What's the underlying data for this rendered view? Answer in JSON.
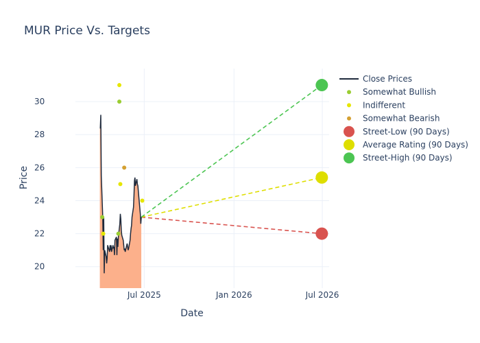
{
  "chart_data": {
    "type": "line",
    "title": "MUR Price Vs. Targets",
    "xlabel": "Date",
    "ylabel": "Price",
    "xlim": [
      "2025-02-10",
      "2026-07-15"
    ],
    "ylim": [
      18.7,
      32.0
    ],
    "x_ticks": [
      {
        "date": "2025-07-01",
        "label": "Jul 2025"
      },
      {
        "date": "2026-01-01",
        "label": "Jan 2026"
      },
      {
        "date": "2026-07-01",
        "label": "Jul 2026"
      }
    ],
    "y_ticks": [
      20,
      22,
      24,
      26,
      28,
      30
    ],
    "grid": true,
    "legend_position": "top-right",
    "colors": {
      "close": "#1f2a3c",
      "fill": "#fcb08b",
      "somewhat_bullish": "#9acd32",
      "indifferent": "#e6e600",
      "somewhat_bearish": "#d4a032",
      "street_low": "#d9534f",
      "average": "#dede00",
      "street_high": "#4cc552"
    },
    "close_prices": [
      [
        "2025-04-01",
        28.4
      ],
      [
        "2025-04-02",
        28.4
      ],
      [
        "2025-04-03",
        29.2
      ],
      [
        "2025-04-04",
        25.5
      ],
      [
        "2025-04-07",
        23.0
      ],
      [
        "2025-04-08",
        21.0
      ],
      [
        "2025-04-09",
        23.0
      ],
      [
        "2025-04-10",
        19.6
      ],
      [
        "2025-04-11",
        21.0
      ],
      [
        "2025-04-14",
        20.6
      ],
      [
        "2025-04-15",
        20.2
      ],
      [
        "2025-04-16",
        20.5
      ],
      [
        "2025-04-17",
        21.3
      ],
      [
        "2025-04-21",
        20.9
      ],
      [
        "2025-04-22",
        21.3
      ],
      [
        "2025-04-23",
        21.0
      ],
      [
        "2025-04-24",
        21.3
      ],
      [
        "2025-04-25",
        20.9
      ],
      [
        "2025-04-28",
        21.3
      ],
      [
        "2025-04-29",
        21.1
      ],
      [
        "2025-04-30",
        21.2
      ],
      [
        "2025-05-01",
        20.7
      ],
      [
        "2025-05-02",
        21.6
      ],
      [
        "2025-05-05",
        21.8
      ],
      [
        "2025-05-06",
        20.7
      ],
      [
        "2025-05-07",
        21.7
      ],
      [
        "2025-05-08",
        21.2
      ],
      [
        "2025-05-09",
        21.8
      ],
      [
        "2025-05-12",
        22.6
      ],
      [
        "2025-05-13",
        23.2
      ],
      [
        "2025-05-14",
        22.9
      ],
      [
        "2025-05-15",
        22.2
      ],
      [
        "2025-05-16",
        21.9
      ],
      [
        "2025-05-19",
        21.6
      ],
      [
        "2025-05-20",
        21.3
      ],
      [
        "2025-05-21",
        21.0
      ],
      [
        "2025-05-22",
        21.1
      ],
      [
        "2025-05-23",
        20.9
      ],
      [
        "2025-05-27",
        21.4
      ],
      [
        "2025-05-28",
        21.2
      ],
      [
        "2025-05-29",
        21.0
      ],
      [
        "2025-05-30",
        21.1
      ],
      [
        "2025-06-02",
        21.6
      ],
      [
        "2025-06-03",
        22.0
      ],
      [
        "2025-06-04",
        22.3
      ],
      [
        "2025-06-05",
        22.5
      ],
      [
        "2025-06-06",
        23.0
      ],
      [
        "2025-06-09",
        23.6
      ],
      [
        "2025-06-10",
        24.3
      ],
      [
        "2025-06-11",
        25.2
      ],
      [
        "2025-06-12",
        25.4
      ],
      [
        "2025-06-13",
        24.9
      ],
      [
        "2025-06-16",
        25.3
      ],
      [
        "2025-06-17",
        25.0
      ],
      [
        "2025-06-18",
        24.9
      ],
      [
        "2025-06-20",
        24.2
      ],
      [
        "2025-06-23",
        23.2
      ],
      [
        "2025-06-24",
        22.6
      ],
      [
        "2025-06-25",
        23.0
      ]
    ],
    "rating_points": [
      {
        "date": "2025-04-06",
        "price": 23,
        "category": "somewhat_bullish"
      },
      {
        "date": "2025-04-08",
        "price": 22,
        "category": "indifferent"
      },
      {
        "date": "2025-05-09",
        "price": 22,
        "category": "somewhat_bullish"
      },
      {
        "date": "2025-05-11",
        "price": 30,
        "category": "somewhat_bullish"
      },
      {
        "date": "2025-05-11",
        "price": 31,
        "category": "indifferent"
      },
      {
        "date": "2025-05-13",
        "price": 25,
        "category": "indifferent"
      },
      {
        "date": "2025-05-21",
        "price": 26,
        "category": "somewhat_bearish"
      },
      {
        "date": "2025-06-27",
        "price": 24,
        "category": "indifferent"
      }
    ],
    "targets": {
      "start": {
        "date": "2025-06-25",
        "price": 23.0
      },
      "end_date": "2026-06-30",
      "street_low": 22.0,
      "average": 25.4,
      "street_high": 31.0
    },
    "legend": [
      {
        "key": "close",
        "label": "Close Prices",
        "kind": "line"
      },
      {
        "key": "somewhat_bullish",
        "label": "Somewhat Bullish",
        "kind": "dot"
      },
      {
        "key": "indifferent",
        "label": "Indifferent",
        "kind": "dot"
      },
      {
        "key": "somewhat_bearish",
        "label": "Somewhat Bearish",
        "kind": "dot"
      },
      {
        "key": "street_low",
        "label": "Street-Low (90 Days)",
        "kind": "bigdot"
      },
      {
        "key": "average",
        "label": "Average Rating (90 Days)",
        "kind": "bigdot"
      },
      {
        "key": "street_high",
        "label": "Street-High (90 Days)",
        "kind": "bigdot"
      }
    ]
  }
}
